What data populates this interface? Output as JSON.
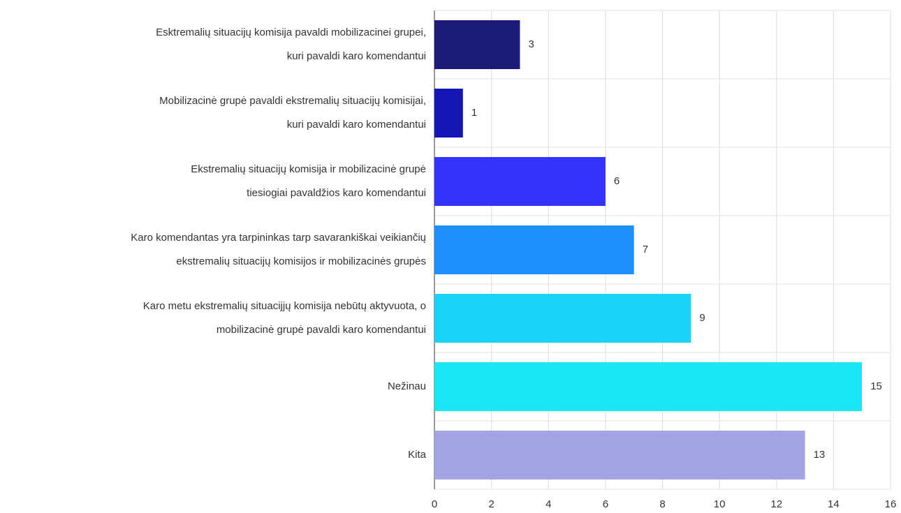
{
  "chart_data": {
    "type": "bar",
    "orientation": "horizontal",
    "categories": [
      [
        "Esktremalių situacijų komisija pavaldi mobilizacinei grupei,",
        "kuri pavaldi karo komendantui"
      ],
      [
        "Mobilizacinė grupė pavaldi ekstremalių situacijų komisijai,",
        "kuri pavaldi karo komendantui"
      ],
      [
        "Ekstremalių situacijų komisija ir mobilizacinė grupė",
        "tiesiogiai pavaldžios karo komendantui"
      ],
      [
        "Karo komendantas yra tarpininkas tarp savarankiškai veikiančių",
        "ekstremalių situacijų komisijos ir mobilizacinės grupės"
      ],
      [
        "Karo metu ekstremalių situacijjų komisija nebūtų aktyvuota, o",
        "mobilizacinė grupė pavaldi karo komendantui"
      ],
      [
        "Nežinau"
      ],
      [
        "Kita"
      ]
    ],
    "values": [
      3,
      1,
      6,
      7,
      9,
      15,
      13
    ],
    "colors": [
      "#1c1c78",
      "#1616b4",
      "#3333fc",
      "#1e90fc",
      "#1ad2f6",
      "#1ae6f4",
      "#a4a4e2"
    ],
    "xlim": [
      0,
      16
    ],
    "xticks": [
      0,
      2,
      4,
      6,
      8,
      10,
      12,
      14,
      16
    ],
    "grid": true
  }
}
